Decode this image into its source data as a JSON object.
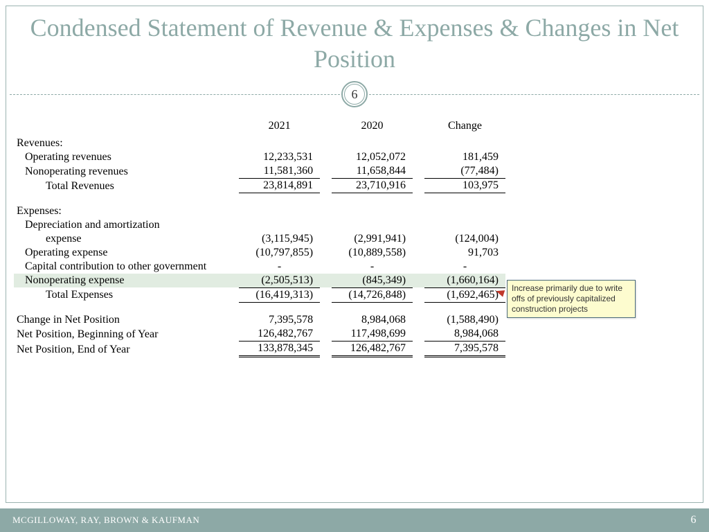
{
  "title": "Condensed Statement of Revenue & Expenses & Changes in Net Position",
  "badge": "6",
  "columns": {
    "c1": "2021",
    "c2": "2020",
    "c3": "Change"
  },
  "sections": {
    "rev_header": "Revenues:",
    "exp_header": "Expenses:"
  },
  "rows": {
    "op_rev": {
      "label": "Operating revenues",
      "c1": "12,233,531",
      "c2": "12,052,072",
      "c3": "181,459"
    },
    "nonop_rev": {
      "label": "Nonoperating revenues",
      "c1": "11,581,360",
      "c2": "11,658,844",
      "c3": "(77,484)"
    },
    "tot_rev": {
      "label": "Total Revenues",
      "c1": "23,814,891",
      "c2": "23,710,916",
      "c3": "103,975"
    },
    "dep_l1": {
      "label": "Depreciation and amortization"
    },
    "dep_l2": {
      "label": "expense",
      "c1": "(3,115,945)",
      "c2": "(2,991,941)",
      "c3": "(124,004)"
    },
    "op_exp": {
      "label": "Operating expense",
      "c1": "(10,797,855)",
      "c2": "(10,889,558)",
      "c3": "91,703"
    },
    "cap_contrib": {
      "label": "Capital contribution to other government",
      "c1": "-",
      "c2": "-",
      "c3": "-"
    },
    "nonop_exp": {
      "label": "Nonoperating expense",
      "c1": "(2,505,513)",
      "c2": "(845,349)",
      "c3": "(1,660,164)"
    },
    "tot_exp": {
      "label": "Total Expenses",
      "c1": "(16,419,313)",
      "c2": "(14,726,848)",
      "c3": "(1,692,465)"
    },
    "chg_np": {
      "label": "Change in Net Position",
      "c1": "7,395,578",
      "c2": "8,984,068",
      "c3": "(1,588,490)"
    },
    "np_beg": {
      "label": "Net Position, Beginning of Year",
      "c1": "126,482,767",
      "c2": "117,498,699",
      "c3": "8,984,068"
    },
    "np_end": {
      "label": "Net Position, End of Year",
      "c1": "133,878,345",
      "c2": "126,482,767",
      "c3": "7,395,578"
    }
  },
  "callout": "Increase primarily due to write offs of previously capitalized construction projects",
  "footer": {
    "firm": "MCGILLOWAY, RAY, BROWN & KAUFMAN",
    "page": "6"
  },
  "colors": {
    "accent": "#8da9a6",
    "highlight": "#e1ece1",
    "callout_bg": "#fdfccf",
    "callout_border": "#4a6a7a"
  }
}
